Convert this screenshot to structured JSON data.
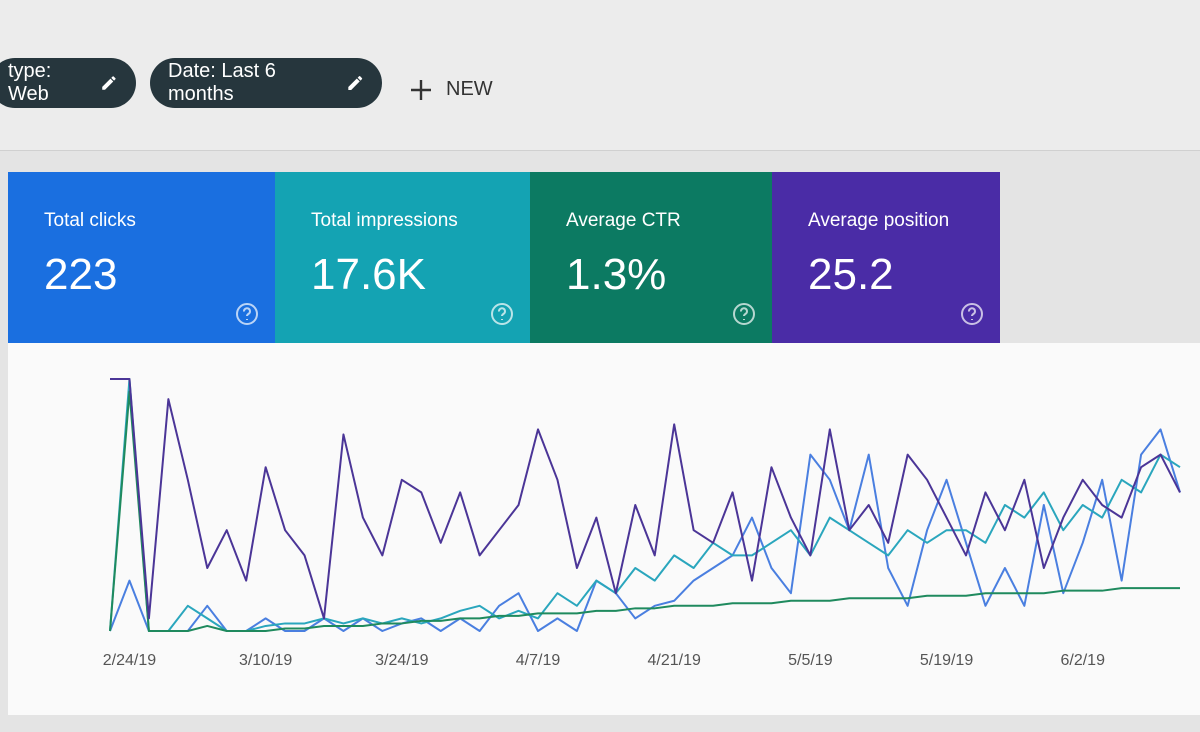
{
  "filters": [
    {
      "label": "type: Web"
    },
    {
      "label": "Date: Last 6 months"
    }
  ],
  "new_button": {
    "label": "NEW"
  },
  "metrics": [
    {
      "label": "Total clicks",
      "value": "223",
      "color": "#1a6fe0"
    },
    {
      "label": "Total impressions",
      "value": "17.6K",
      "color": "#14a3b3"
    },
    {
      "label": "Average CTR",
      "value": "1.3%",
      "color": "#0c7a62"
    },
    {
      "label": "Average position",
      "value": "25.2",
      "color": "#4a2ca6"
    }
  ],
  "chart_data": {
    "type": "line",
    "xlim": [
      0,
      55
    ],
    "ylim": [
      0,
      100
    ],
    "xticks": [
      {
        "value": 1,
        "label": "2/24/19"
      },
      {
        "value": 8,
        "label": "3/10/19"
      },
      {
        "value": 15,
        "label": "3/24/19"
      },
      {
        "value": 22,
        "label": "4/7/19"
      },
      {
        "value": 29,
        "label": "4/21/19"
      },
      {
        "value": 36,
        "label": "5/5/19"
      },
      {
        "value": 43,
        "label": "5/19/19"
      },
      {
        "value": 50,
        "label": "6/2/19"
      }
    ],
    "series": [
      {
        "name": "Total clicks",
        "color": "#4a7fe0",
        "values": [
          0,
          20,
          0,
          0,
          0,
          10,
          0,
          0,
          5,
          0,
          0,
          5,
          0,
          5,
          0,
          3,
          5,
          0,
          5,
          0,
          10,
          15,
          0,
          5,
          0,
          20,
          15,
          5,
          10,
          12,
          20,
          25,
          30,
          45,
          25,
          15,
          70,
          60,
          40,
          70,
          25,
          10,
          40,
          60,
          35,
          10,
          25,
          10,
          50,
          15,
          35,
          60,
          20,
          70,
          80,
          55
        ]
      },
      {
        "name": "Total impressions",
        "color": "#2aa6bd",
        "values": [
          0,
          100,
          0,
          0,
          10,
          5,
          0,
          0,
          2,
          3,
          3,
          5,
          3,
          5,
          3,
          5,
          3,
          5,
          8,
          10,
          5,
          8,
          5,
          15,
          10,
          20,
          15,
          25,
          20,
          30,
          25,
          35,
          30,
          30,
          35,
          40,
          30,
          45,
          40,
          35,
          30,
          40,
          35,
          40,
          40,
          35,
          50,
          45,
          55,
          40,
          50,
          45,
          60,
          55,
          70,
          65
        ]
      },
      {
        "name": "Average CTR",
        "color": "#1f8a5e",
        "values": [
          0,
          95,
          0,
          0,
          0,
          2,
          0,
          0,
          0,
          1,
          1,
          2,
          2,
          2,
          3,
          3,
          4,
          4,
          5,
          5,
          6,
          6,
          7,
          7,
          7,
          8,
          8,
          9,
          9,
          10,
          10,
          10,
          11,
          11,
          11,
          12,
          12,
          12,
          13,
          13,
          13,
          13,
          14,
          14,
          14,
          15,
          15,
          15,
          15,
          16,
          16,
          16,
          17,
          17,
          17,
          17
        ]
      },
      {
        "name": "Average position",
        "color": "#4b3597",
        "values": [
          100,
          100,
          5,
          92,
          60,
          25,
          40,
          20,
          65,
          40,
          30,
          5,
          78,
          45,
          30,
          60,
          55,
          35,
          55,
          30,
          40,
          50,
          80,
          60,
          25,
          45,
          15,
          50,
          30,
          82,
          40,
          35,
          55,
          20,
          65,
          45,
          30,
          80,
          40,
          50,
          35,
          70,
          60,
          45,
          30,
          55,
          40,
          60,
          25,
          45,
          60,
          50,
          45,
          65,
          70,
          55
        ]
      }
    ]
  }
}
